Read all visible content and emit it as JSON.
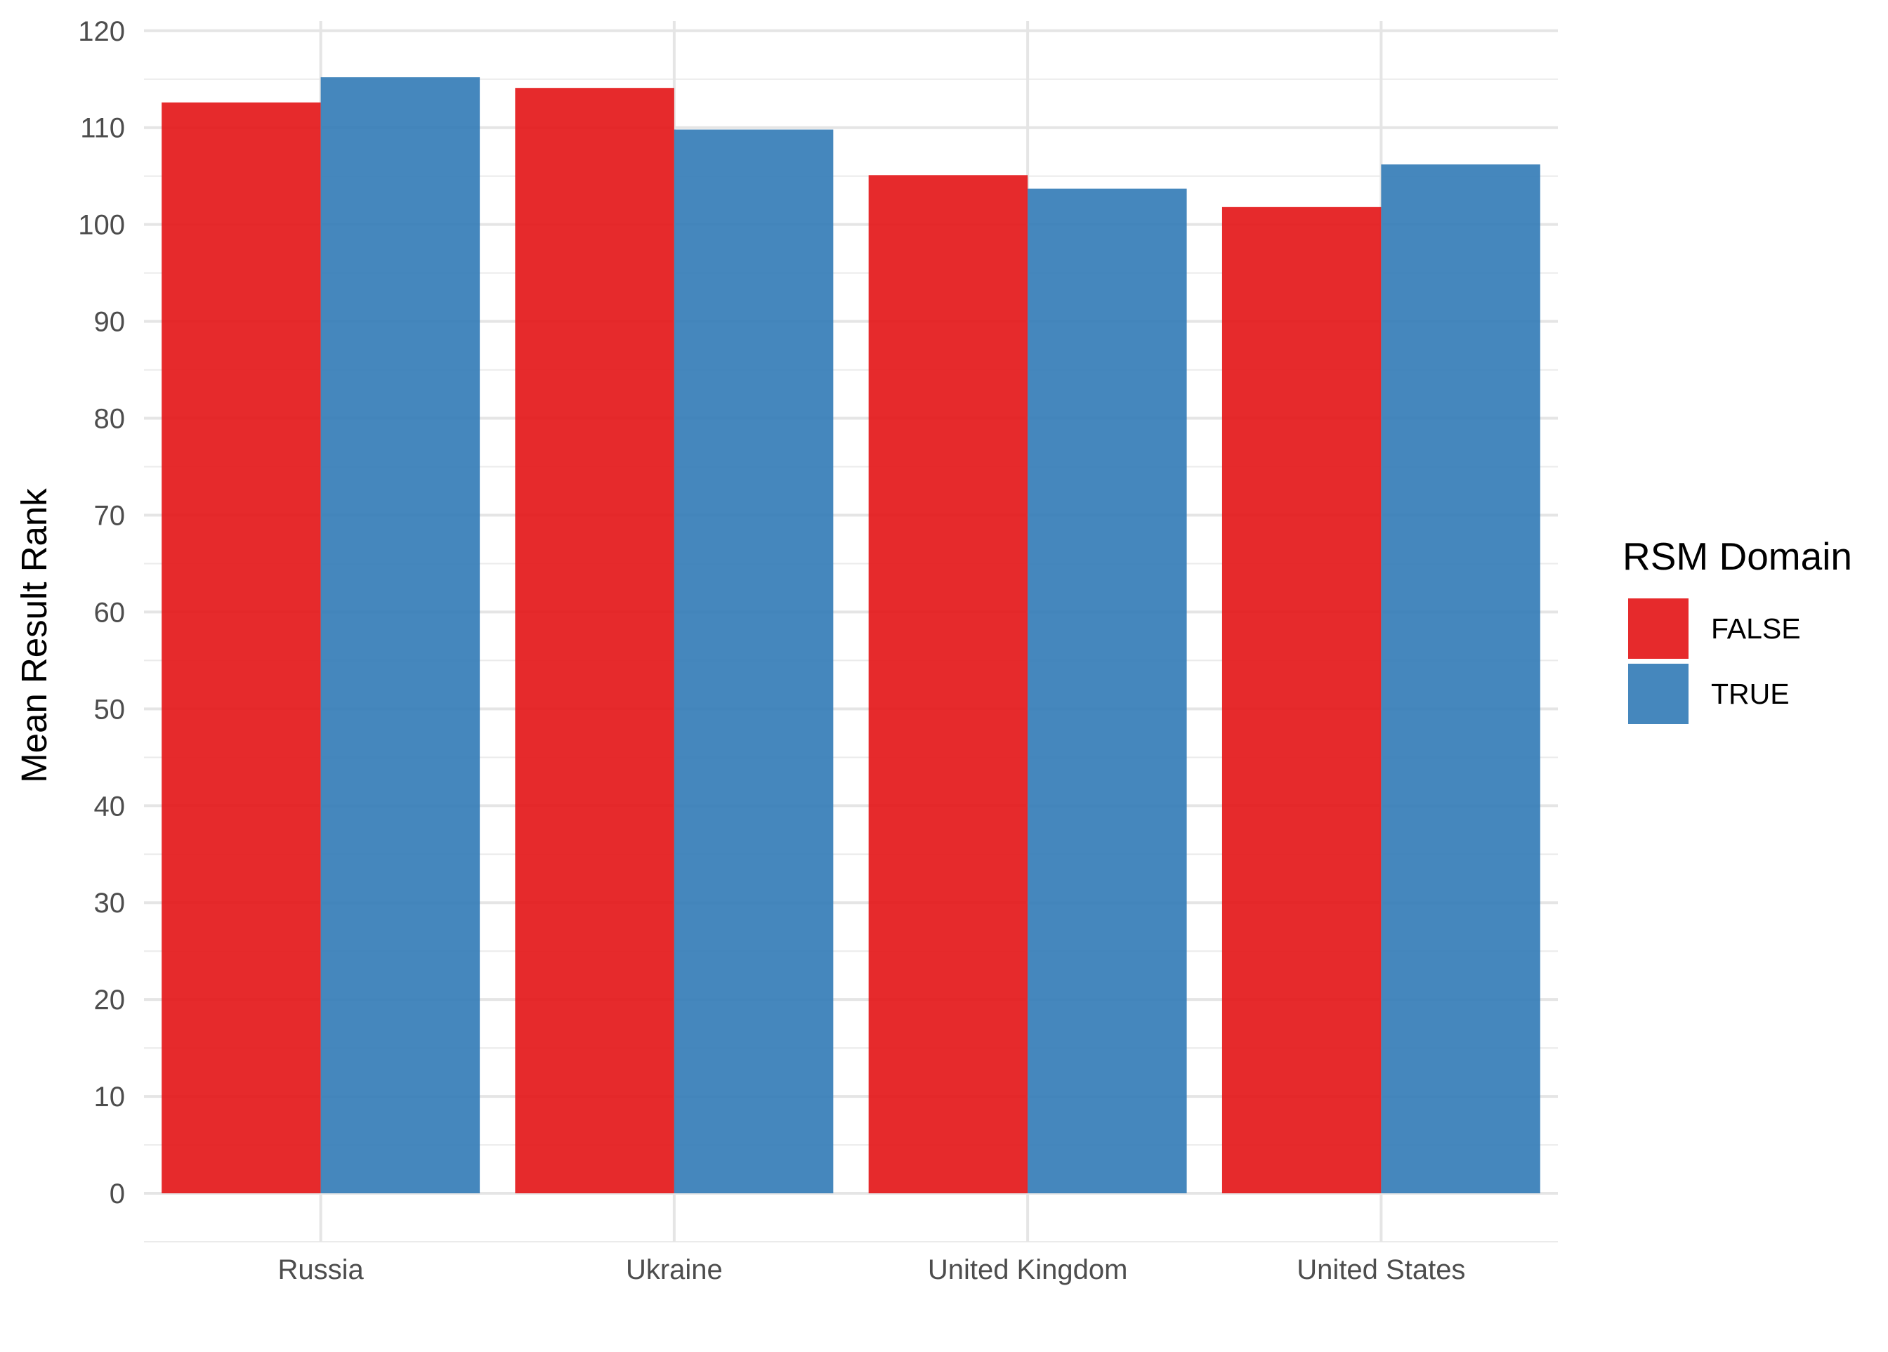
{
  "chart_data": {
    "type": "bar",
    "title": "",
    "xlabel": "",
    "ylabel": "Mean Result Rank",
    "categories": [
      "Russia",
      "Ukraine",
      "United Kingdom",
      "United States"
    ],
    "series": [
      {
        "name": "FALSE",
        "color": "#e41a1c",
        "values": [
          112.6,
          114.1,
          105.1,
          101.8
        ]
      },
      {
        "name": "TRUE",
        "color": "#377eb8",
        "values": [
          115.2,
          109.8,
          103.7,
          106.2
        ]
      }
    ],
    "ylim": [
      -5,
      121
    ],
    "yticks": [
      0,
      10,
      20,
      30,
      40,
      50,
      60,
      70,
      80,
      90,
      100,
      110,
      120
    ],
    "grid": true,
    "legend": {
      "title": "RSM Domain",
      "position": "right"
    }
  }
}
